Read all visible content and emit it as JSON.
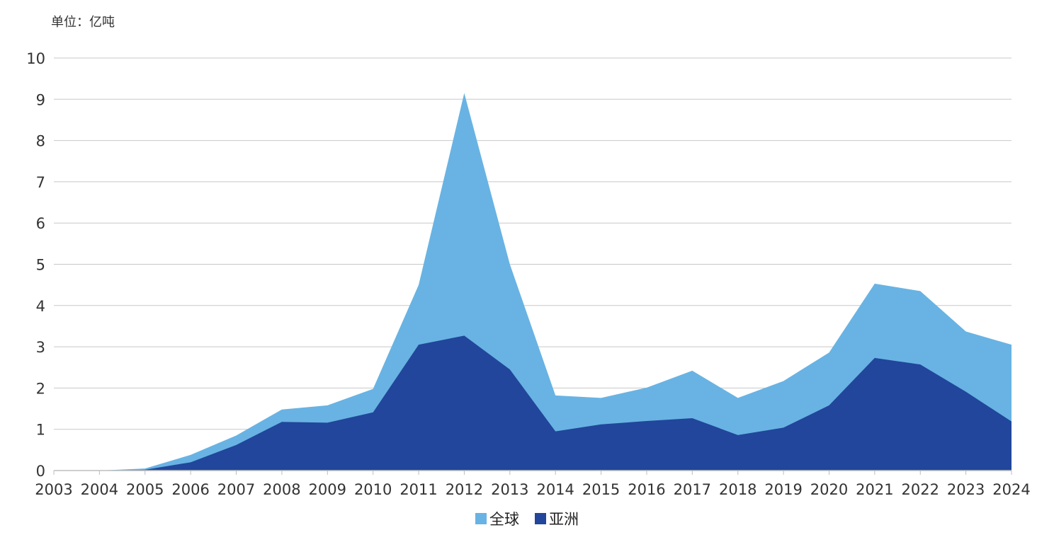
{
  "unit_label": "单位：亿吨",
  "chart_data": {
    "type": "area",
    "title": "",
    "xlabel": "",
    "ylabel": "单位：亿吨",
    "ylim": [
      0,
      10
    ],
    "yticks": [
      "0",
      "1",
      "2",
      "3",
      "4",
      "5",
      "6",
      "7",
      "8",
      "9",
      "10"
    ],
    "categories": [
      "2003",
      "2004",
      "2005",
      "2006",
      "2007",
      "2008",
      "2009",
      "2010",
      "2011",
      "2012",
      "2013",
      "2014",
      "2015",
      "2016",
      "2017",
      "2018",
      "2019",
      "2020",
      "2021",
      "2022",
      "2023",
      "2024"
    ],
    "series": [
      {
        "name": "全球",
        "color": "#68b3e3",
        "values": [
          0,
          0,
          0.05,
          0.38,
          0.85,
          1.48,
          1.58,
          1.98,
          4.5,
          9.15,
          5.0,
          1.82,
          1.76,
          2.01,
          2.42,
          1.76,
          2.17,
          2.86,
          4.53,
          4.35,
          3.37,
          3.05
        ]
      },
      {
        "name": "亚洲",
        "color": "#21469b",
        "values": [
          0,
          0,
          0.02,
          0.2,
          0.62,
          1.18,
          1.16,
          1.41,
          3.05,
          3.27,
          2.45,
          0.95,
          1.12,
          1.2,
          1.27,
          0.86,
          1.04,
          1.58,
          2.73,
          2.57,
          1.91,
          1.19
        ]
      }
    ],
    "grid": true,
    "legend_position": "bottom"
  }
}
